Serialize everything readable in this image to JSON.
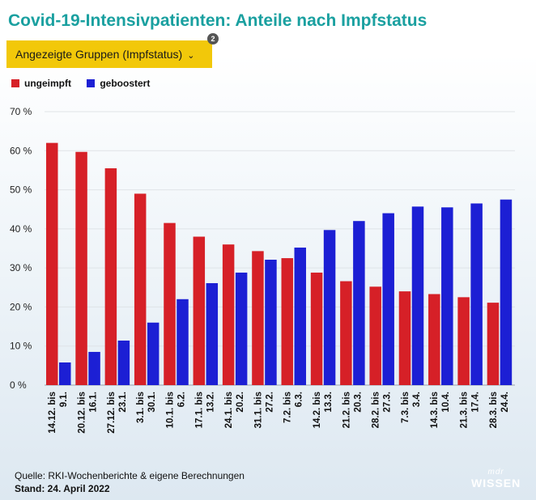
{
  "title": "Covid-19-Intensivpatienten: Anteile nach Impfstatus",
  "filter": {
    "label": "Angezeigte Gruppen (Impfstatus)",
    "chevron": "⌄",
    "badge": "2"
  },
  "source": "Quelle: RKI-Wochenberichte & eigene Berechnungen",
  "stand": "Stand: 24. April 2022",
  "logo": {
    "top": "mdr",
    "bottom": "WISSEN"
  },
  "colors": {
    "title": "#1aa0a0",
    "filter": "#f2c80a",
    "ungeimpft": "#d62027",
    "geboostert": "#1c1fd4"
  },
  "chart_data": {
    "type": "bar",
    "categories": [
      [
        "14.12. bis",
        "9.1."
      ],
      [
        "20.12. bis",
        "16.1."
      ],
      [
        "27.12. bis",
        "23.1."
      ],
      [
        "3.1. bis",
        "30.1."
      ],
      [
        "10.1. bis",
        "6.2."
      ],
      [
        "17.1. bis",
        "13.2."
      ],
      [
        "24.1. bis",
        "20.2."
      ],
      [
        "31.1. bis",
        "27.2."
      ],
      [
        "7.2. bis",
        "6.3."
      ],
      [
        "14.2. bis",
        "13.3."
      ],
      [
        "21.2. bis",
        "20.3."
      ],
      [
        "28.2. bis",
        "27.3."
      ],
      [
        "7.3. bis",
        "3.4."
      ],
      [
        "14.3. bis",
        "10.4."
      ],
      [
        "21.3. bis",
        "17.4."
      ],
      [
        "28.3. bis",
        "24.4."
      ]
    ],
    "series": [
      {
        "name": "ungeimpft",
        "color": "#d62027",
        "values": [
          62.0,
          59.7,
          55.5,
          49.0,
          41.5,
          38.0,
          36.0,
          34.3,
          32.5,
          28.8,
          26.6,
          25.2,
          24.0,
          23.3,
          22.5,
          21.1
        ]
      },
      {
        "name": "geboostert",
        "color": "#1c1fd4",
        "values": [
          5.8,
          8.5,
          11.4,
          16.0,
          22.0,
          26.1,
          28.8,
          32.1,
          35.2,
          39.7,
          42.0,
          44.0,
          45.7,
          45.5,
          46.5,
          47.5
        ]
      }
    ],
    "yticks": [
      "0 %",
      "10 %",
      "20 %",
      "30 %",
      "40 %",
      "50 %",
      "60 %",
      "70 %"
    ],
    "ylim": [
      0,
      70
    ],
    "legend_position": "top-left",
    "grid": true
  }
}
